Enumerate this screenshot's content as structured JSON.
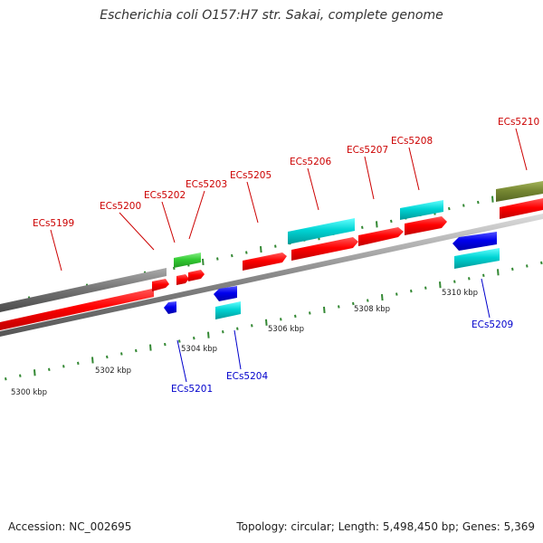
{
  "title": "Escherichia coli O157:H7 str. Sakai, complete genome",
  "footer": {
    "accession": "Accession: NC_002695",
    "summary": "Topology: circular; Length: 5,498,450 bp; Genes: 5,369"
  },
  "colors": {
    "forward_cds": "#ff0000",
    "reverse_cds": "#0000ff",
    "forward_other": "#00cccc",
    "reverse_other": "#00cccc",
    "pseudogene": "#777777",
    "rna": "#33cc33",
    "olive": "#778833",
    "backbone": "#888888",
    "forward_label": "#cc0000",
    "reverse_label": "#0000cc",
    "tick": "#338833"
  },
  "kbp_ticks": [
    "5300 kbp",
    "5302 kbp",
    "5304 kbp",
    "5306 kbp",
    "5308 kbp",
    "5310 kbp"
  ],
  "genes": [
    {
      "id": "ECs5199",
      "strand": "forward",
      "color_key": "forward_label"
    },
    {
      "id": "ECs5200",
      "strand": "forward",
      "color_key": "forward_label"
    },
    {
      "id": "ECs5201",
      "strand": "reverse",
      "color_key": "reverse_label"
    },
    {
      "id": "ECs5202",
      "strand": "forward",
      "color_key": "forward_label"
    },
    {
      "id": "ECs5203",
      "strand": "forward",
      "color_key": "forward_label"
    },
    {
      "id": "ECs5204",
      "strand": "reverse",
      "color_key": "reverse_label"
    },
    {
      "id": "ECs5205",
      "strand": "forward",
      "color_key": "forward_label"
    },
    {
      "id": "ECs5206",
      "strand": "forward",
      "color_key": "forward_label"
    },
    {
      "id": "ECs5207",
      "strand": "forward",
      "color_key": "forward_label"
    },
    {
      "id": "ECs5208",
      "strand": "forward",
      "color_key": "forward_label"
    },
    {
      "id": "ECs5209",
      "strand": "reverse",
      "color_key": "reverse_label"
    },
    {
      "id": "ECs5210",
      "strand": "forward",
      "color_key": "forward_label"
    }
  ]
}
